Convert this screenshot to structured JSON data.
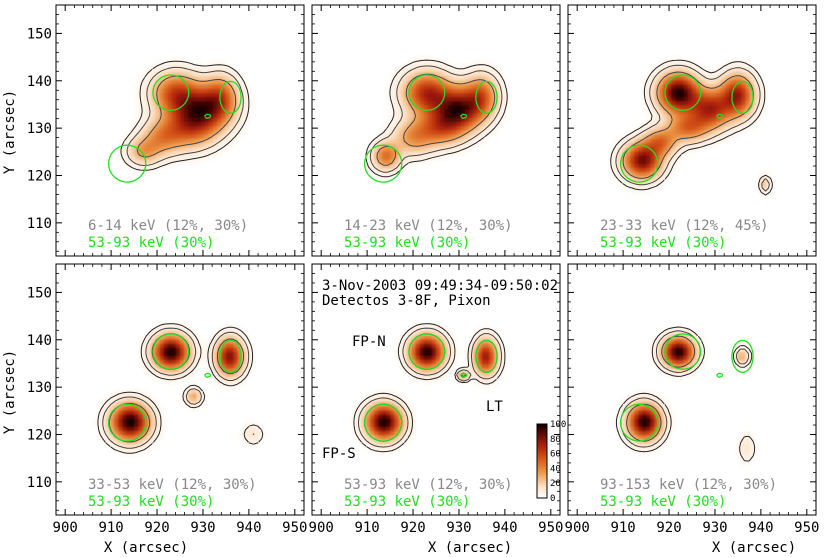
{
  "chart_data": {
    "type": "heatmap",
    "title": "3-Nov-2003 09:49:34-09:50:02",
    "subtitle": "Detectos 3-8F, Pixon",
    "xlabel": "X (arcsec)",
    "ylabel": "Y (arcsec)",
    "xlim": [
      898,
      952
    ],
    "ylim": [
      103,
      156
    ],
    "xticks": [
      900,
      910,
      920,
      930,
      940,
      950
    ],
    "yticks": [
      110,
      120,
      130,
      140,
      150
    ],
    "contour_reference": "53-93 keV (30%)",
    "colorbar": {
      "ticks": [
        0,
        20,
        40,
        60,
        80,
        100
      ],
      "range": [
        0,
        100
      ]
    },
    "annotations": [
      {
        "text": "FP-N",
        "x": 904,
        "y": 139
      },
      {
        "text": "LT",
        "x": 938,
        "y": 124.5
      },
      {
        "text": "FP-S",
        "x": 902,
        "y": 113
      }
    ],
    "panels": [
      {
        "band": "6-14 keV (12%, 30%)",
        "sources": [
          {
            "x": 930,
            "y": 134,
            "sx": 4.0,
            "sy": 3.2,
            "a": 100
          },
          {
            "x": 924,
            "y": 137.5,
            "sx": 3.5,
            "sy": 3.0,
            "a": 75
          },
          {
            "x": 934,
            "y": 137,
            "sx": 2.5,
            "sy": 3.0,
            "a": 55
          },
          {
            "x": 927,
            "y": 130,
            "sx": 4.0,
            "sy": 3.0,
            "a": 60
          },
          {
            "x": 921,
            "y": 128,
            "sx": 3.0,
            "sy": 2.5,
            "a": 45
          },
          {
            "x": 917,
            "y": 125,
            "sx": 2.5,
            "sy": 2.0,
            "a": 42
          }
        ]
      },
      {
        "band": "14-23 keV (12%, 30%)",
        "sources": [
          {
            "x": 930,
            "y": 134,
            "sx": 3.5,
            "sy": 3.0,
            "a": 100
          },
          {
            "x": 923,
            "y": 137.5,
            "sx": 3.5,
            "sy": 3.0,
            "a": 80
          },
          {
            "x": 935,
            "y": 137,
            "sx": 2.5,
            "sy": 3.0,
            "a": 55
          },
          {
            "x": 926,
            "y": 130,
            "sx": 3.5,
            "sy": 2.5,
            "a": 55
          },
          {
            "x": 920,
            "y": 128,
            "sx": 3.0,
            "sy": 2.5,
            "a": 40
          },
          {
            "x": 914,
            "y": 124,
            "sx": 2.0,
            "sy": 2.0,
            "a": 55
          }
        ]
      },
      {
        "band": "23-33 keV (12%, 45%)",
        "sources": [
          {
            "x": 922,
            "y": 137.5,
            "sx": 3.0,
            "sy": 2.8,
            "a": 100
          },
          {
            "x": 929,
            "y": 134,
            "sx": 3.0,
            "sy": 2.8,
            "a": 70
          },
          {
            "x": 935,
            "y": 137,
            "sx": 2.5,
            "sy": 3.0,
            "a": 75
          },
          {
            "x": 924,
            "y": 130,
            "sx": 3.0,
            "sy": 2.0,
            "a": 45
          },
          {
            "x": 914,
            "y": 123,
            "sx": 2.8,
            "sy": 2.5,
            "a": 85
          },
          {
            "x": 918,
            "y": 127,
            "sx": 2.5,
            "sy": 2.0,
            "a": 45
          },
          {
            "x": 941,
            "y": 118,
            "sx": 0.8,
            "sy": 1.2,
            "a": 22
          }
        ]
      },
      {
        "band": "33-53 keV (12%, 30%)",
        "sources": [
          {
            "x": 923,
            "y": 137.5,
            "sx": 2.6,
            "sy": 2.4,
            "a": 100
          },
          {
            "x": 936,
            "y": 136.5,
            "sx": 2.0,
            "sy": 2.6,
            "a": 80
          },
          {
            "x": 914,
            "y": 122.5,
            "sx": 2.8,
            "sy": 2.6,
            "a": 100
          },
          {
            "x": 928,
            "y": 128,
            "sx": 1.2,
            "sy": 1.2,
            "a": 30
          },
          {
            "x": 941,
            "y": 120,
            "sx": 1.5,
            "sy": 1.5,
            "a": 12
          }
        ]
      },
      {
        "band": "53-93 keV (12%, 30%)",
        "sources": [
          {
            "x": 923,
            "y": 137.5,
            "sx": 2.5,
            "sy": 2.4,
            "a": 100
          },
          {
            "x": 936,
            "y": 136.5,
            "sx": 1.7,
            "sy": 2.5,
            "a": 75
          },
          {
            "x": 913.5,
            "y": 122.5,
            "sx": 2.6,
            "sy": 2.5,
            "a": 100
          },
          {
            "x": 931,
            "y": 132.5,
            "sx": 0.9,
            "sy": 0.7,
            "a": 40
          }
        ]
      },
      {
        "band": "93-153 keV (12%, 30%)",
        "sources": [
          {
            "x": 922,
            "y": 137.5,
            "sx": 2.3,
            "sy": 2.1,
            "a": 100
          },
          {
            "x": 914.5,
            "y": 122.5,
            "sx": 2.4,
            "sy": 2.5,
            "a": 100
          },
          {
            "x": 936,
            "y": 136.5,
            "sx": 1.0,
            "sy": 1.2,
            "a": 30
          },
          {
            "x": 937,
            "y": 117,
            "sx": 1.2,
            "sy": 2.0,
            "a": 12
          }
        ]
      }
    ]
  },
  "colors": {
    "ref_contour": "#22dd22",
    "contour": "#444444",
    "band_text": "#888888"
  }
}
